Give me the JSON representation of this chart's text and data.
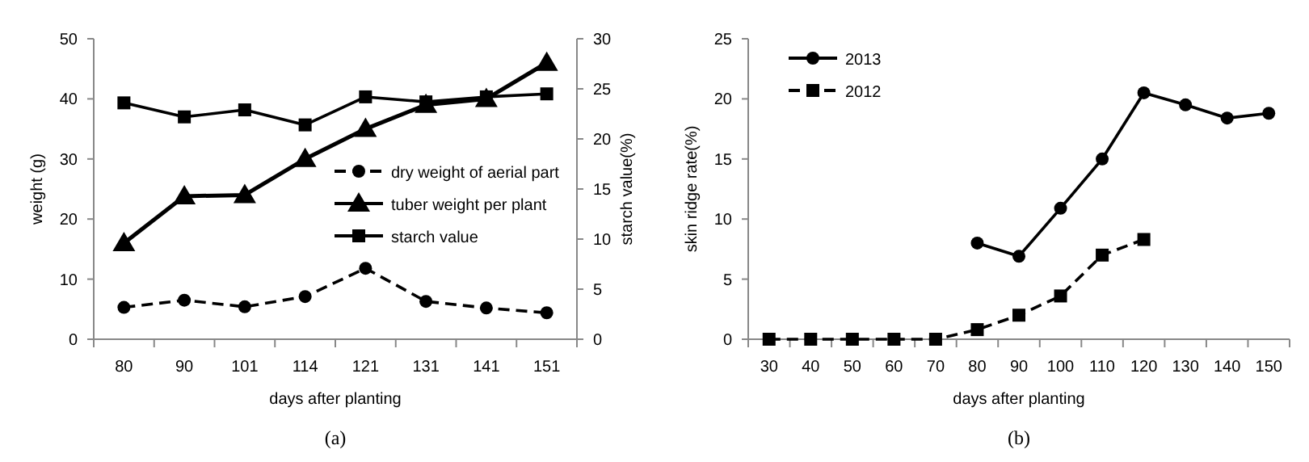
{
  "chart_data": [
    {
      "type": "line",
      "categories": [
        "80",
        "90",
        "101",
        "114",
        "121",
        "131",
        "141",
        "151"
      ],
      "xlabel": "days after planting",
      "ylabel": "weight (g)",
      "y2label": "starch value(%)",
      "ylim": [
        0,
        50
      ],
      "yticks": [
        0,
        10,
        20,
        30,
        40,
        50
      ],
      "y2lim": [
        0,
        30
      ],
      "y2ticks": [
        0,
        5,
        10,
        15,
        20,
        25,
        30
      ],
      "legend": "right",
      "annotations": [
        "(a)"
      ],
      "series": [
        {
          "name": "dry weight of aerial part",
          "color": "#000000",
          "marker": "circle",
          "line_style": "dashed",
          "values": [
            5.3,
            6.5,
            5.4,
            7.1,
            11.8,
            6.3,
            5.2,
            4.4
          ]
        },
        {
          "name": "tuber weight per plant",
          "color": "#000000",
          "marker": "triangle",
          "line_style": "solid",
          "values": [
            16,
            23.8,
            24,
            30,
            35,
            39,
            40,
            46
          ]
        },
        {
          "name": "starch value",
          "color": "#000000",
          "marker": "square",
          "line_style": "solid",
          "axis": "y2",
          "values": [
            23.6,
            22.2,
            22.9,
            21.4,
            24.2,
            23.7,
            24.2,
            24.5
          ]
        }
      ]
    },
    {
      "type": "line",
      "categories": [
        "30",
        "40",
        "50",
        "60",
        "70",
        "80",
        "90",
        "100",
        "110",
        "120",
        "130",
        "140",
        "150"
      ],
      "xlabel": "days after planting",
      "ylabel": "skin ridge rate(%)",
      "ylim": [
        0,
        25
      ],
      "yticks": [
        0,
        5,
        10,
        15,
        20,
        25
      ],
      "legend": "top left",
      "annotations": [
        "(b)"
      ],
      "series": [
        {
          "name": "2013",
          "color": "#000000",
          "marker": "circle",
          "line_style": "solid",
          "values": [
            null,
            null,
            null,
            null,
            null,
            8,
            6.9,
            10.9,
            15,
            20.5,
            19.5,
            18.4,
            18.8
          ]
        },
        {
          "name": "2012",
          "color": "#000000",
          "marker": "square",
          "line_style": "dashed",
          "values": [
            0,
            0,
            0,
            0,
            0,
            0.8,
            2,
            3.6,
            7,
            8.3,
            null,
            null,
            null
          ]
        }
      ]
    }
  ]
}
